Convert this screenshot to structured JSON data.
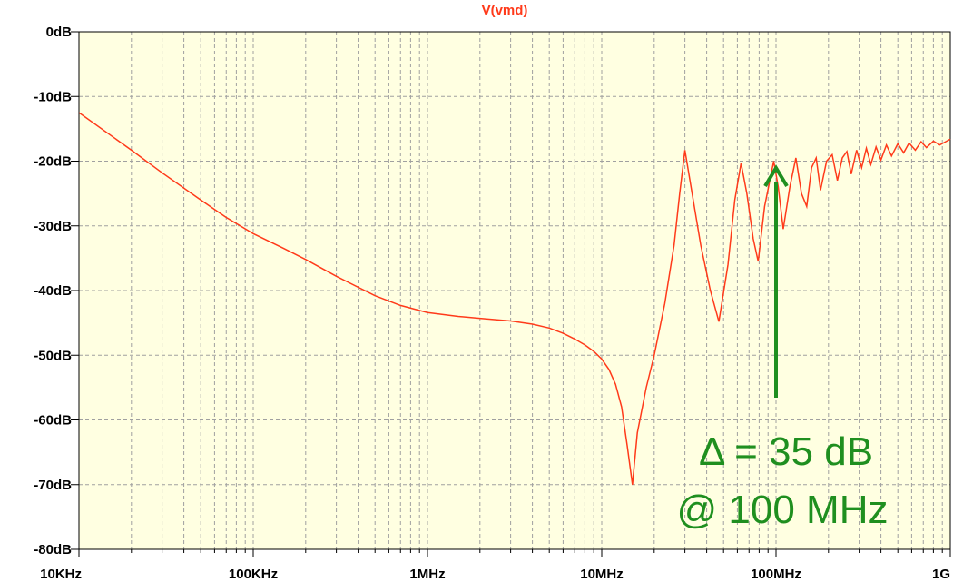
{
  "chart_data": {
    "type": "line",
    "title": "V(vmd)",
    "xscale": "log",
    "grid": true,
    "minor_grid": true,
    "background": "#ffffe1",
    "xlim": [
      10000,
      1000000000
    ],
    "xticks": [
      {
        "value": 10000,
        "label": "10KHz"
      },
      {
        "value": 100000,
        "label": "100KHz"
      },
      {
        "value": 1000000,
        "label": "1MHz"
      },
      {
        "value": 10000000,
        "label": "10MHz"
      },
      {
        "value": 100000000,
        "label": "100MHz"
      },
      {
        "value": 1000000000,
        "label": "1G"
      }
    ],
    "ylim": [
      -80,
      0
    ],
    "yticks": [
      {
        "value": 0,
        "label": "0dB"
      },
      {
        "value": -10,
        "label": "-10dB"
      },
      {
        "value": -20,
        "label": "-20dB"
      },
      {
        "value": -30,
        "label": "-30dB"
      },
      {
        "value": -40,
        "label": "-40dB"
      },
      {
        "value": -50,
        "label": "-50dB"
      },
      {
        "value": -60,
        "label": "-60dB"
      },
      {
        "value": -70,
        "label": "-70dB"
      },
      {
        "value": -80,
        "label": "-80dB"
      }
    ],
    "series": [
      {
        "name": "V(vmd)",
        "color": "#ff3a1a",
        "x": [
          10000,
          20000,
          30000,
          50000,
          70000,
          100000,
          150000,
          200000,
          300000,
          500000,
          700000,
          1000000,
          1500000,
          2000000,
          3000000,
          4000000,
          5000000,
          6000000,
          7000000,
          8000000,
          9000000,
          10000000,
          11000000,
          12000000,
          13000000,
          14000000,
          15000000,
          16000000,
          18000000,
          20000000,
          23000000,
          26000000,
          28000000,
          30000000,
          33000000,
          37000000,
          42000000,
          47000000,
          53000000,
          58000000,
          63000000,
          68000000,
          74000000,
          79000000,
          86000000,
          97000000,
          103000000,
          110000000,
          120000000,
          130000000,
          140000000,
          150000000,
          160000000,
          170000000,
          180000000,
          195000000,
          210000000,
          225000000,
          240000000,
          255000000,
          270000000,
          290000000,
          310000000,
          330000000,
          350000000,
          375000000,
          400000000,
          430000000,
          460000000,
          500000000,
          540000000,
          580000000,
          630000000,
          680000000,
          730000000,
          800000000,
          870000000,
          1000000000
        ],
        "values": [
          -12.5,
          -18.3,
          -21.8,
          -26,
          -28.7,
          -31.2,
          -33.5,
          -35.2,
          -37.8,
          -40.8,
          -42.3,
          -43.4,
          -44,
          -44.3,
          -44.7,
          -45.2,
          -45.8,
          -46.6,
          -47.5,
          -48.4,
          -49.4,
          -50.6,
          -52.2,
          -54.5,
          -58,
          -64,
          -70,
          -62,
          -55,
          -50,
          -42,
          -33,
          -25,
          -18.3,
          -25,
          -33,
          -40,
          -44.8,
          -36,
          -26,
          -20.3,
          -25,
          -32,
          -35.5,
          -27,
          -20,
          -24,
          -30.5,
          -24,
          -19.5,
          -25,
          -27,
          -21,
          -19.5,
          -24.5,
          -20,
          -19,
          -23,
          -19.5,
          -18.5,
          -22,
          -18.3,
          -21,
          -18,
          -20.5,
          -17.8,
          -19.8,
          -17.5,
          -19.2,
          -17.3,
          -18.7,
          -17.2,
          -18.3,
          -17,
          -17.9,
          -16.9,
          -17.5,
          -16.6
        ]
      }
    ],
    "annotations": [
      {
        "text": "Δ = 35 dB",
        "color": "#1f8f1f"
      },
      {
        "text": "@ 100 MHz",
        "color": "#1f8f1f"
      }
    ]
  }
}
